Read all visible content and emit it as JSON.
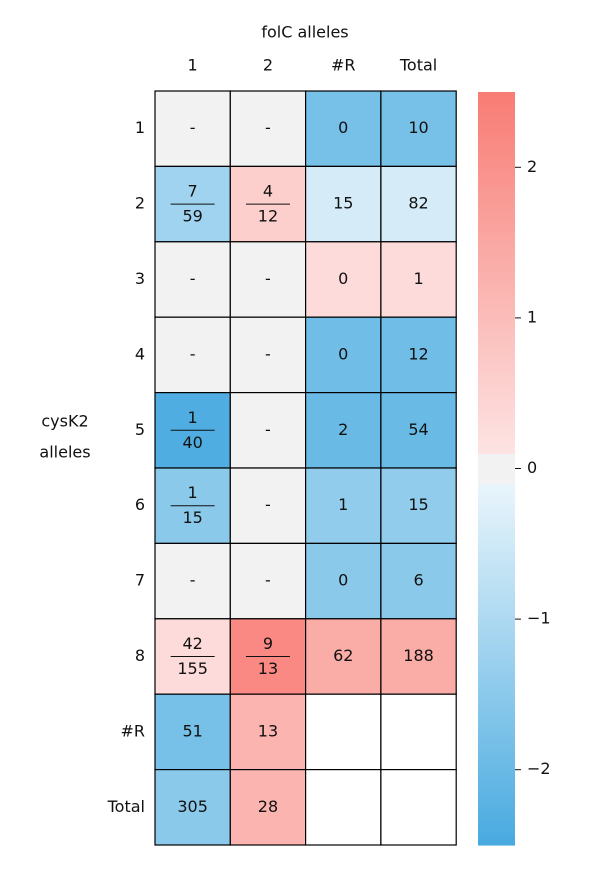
{
  "chart_data": {
    "type": "heatmap",
    "title": "folC alleles",
    "ylabel": [
      "cysK2",
      "alleles"
    ],
    "columns": [
      "1",
      "2",
      "#R",
      "Total"
    ],
    "rows": [
      "1",
      "2",
      "3",
      "4",
      "5",
      "6",
      "7",
      "8",
      "#R",
      "Total"
    ],
    "labels": [
      [
        "-",
        "-",
        0,
        10
      ],
      [
        {
          "numerator": 7,
          "denominator": 59
        },
        {
          "numerator": 4,
          "denominator": 12
        },
        15,
        82
      ],
      [
        "-",
        "-",
        0,
        1
      ],
      [
        "-",
        "-",
        0,
        12
      ],
      [
        {
          "numerator": 1,
          "denominator": 40
        },
        "-",
        2,
        54
      ],
      [
        {
          "numerator": 1,
          "denominator": 15
        },
        "-",
        1,
        15
      ],
      [
        "-",
        "-",
        0,
        6
      ],
      [
        {
          "numerator": 42,
          "denominator": 155
        },
        {
          "numerator": 9,
          "denominator": 13
        },
        62,
        188
      ],
      [
        51,
        13,
        null,
        null
      ],
      [
        305,
        28,
        null,
        null
      ]
    ],
    "values": [
      [
        0,
        0,
        -1.8,
        -1.8
      ],
      [
        -1.2,
        0.6,
        -0.4,
        -0.4
      ],
      [
        0,
        0,
        0.3,
        0.3
      ],
      [
        0,
        0,
        -1.9,
        -1.9
      ],
      [
        -2.4,
        0,
        -2.0,
        -2.0
      ],
      [
        -1.5,
        0,
        -1.4,
        -1.4
      ],
      [
        0,
        0,
        -1.5,
        -1.5
      ],
      [
        0.3,
        2.2,
        1.4,
        1.4
      ],
      [
        -1.8,
        1.2,
        null,
        null
      ],
      [
        -1.5,
        1.2,
        null,
        null
      ]
    ],
    "clim": [
      -2.5,
      2.5
    ],
    "cticks": [
      {
        "value": -2,
        "label": "−2"
      },
      {
        "value": -1,
        "label": "−1"
      },
      0,
      1,
      2
    ],
    "cmap": {
      "negative_end": "#48aae0",
      "negative_start": "#f0f8fc",
      "center": "#f2f2f2",
      "center_halfwidth": 0.1,
      "positive_start": "#fde8e8",
      "positive_end": "#f87c74"
    }
  }
}
